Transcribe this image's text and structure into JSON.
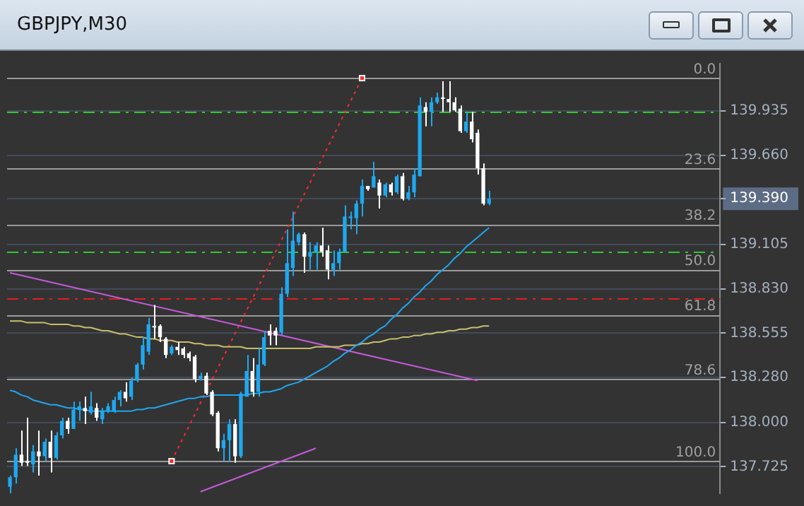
{
  "chart_data": {
    "type": "candlestick",
    "title": "GBPJPY,M30",
    "tick_labels": "y",
    "grid": "y",
    "categories": [
      null,
      null,
      null,
      null,
      null,
      null,
      null,
      null,
      null,
      null,
      null,
      null,
      null,
      null,
      null,
      null,
      null,
      null,
      null,
      null,
      null,
      null,
      null,
      null,
      null,
      null,
      null,
      null,
      null,
      null,
      null,
      null,
      null,
      null,
      null,
      null,
      null,
      null,
      null,
      null,
      null,
      null,
      null,
      null,
      null,
      null,
      null,
      null,
      null,
      null,
      null,
      null,
      null,
      null,
      null,
      null,
      null,
      null,
      null,
      null,
      null,
      null,
      null,
      null,
      null,
      null,
      null,
      null,
      null,
      null,
      null,
      null,
      null,
      null,
      null,
      null,
      null,
      null,
      null,
      null,
      null,
      null,
      null,
      null
    ],
    "ohlc": [
      [
        137.6,
        137.67,
        137.56,
        137.66
      ],
      [
        137.66,
        137.84,
        137.62,
        137.8
      ],
      [
        137.8,
        137.95,
        137.73,
        137.75
      ],
      [
        137.76,
        138.03,
        137.73,
        137.75
      ],
      [
        137.74,
        137.86,
        137.69,
        137.82
      ],
      [
        137.82,
        137.95,
        137.67,
        137.79
      ],
      [
        137.79,
        137.9,
        137.76,
        137.88
      ],
      [
        137.88,
        137.95,
        137.69,
        137.78
      ],
      [
        137.78,
        137.94,
        137.77,
        137.92
      ],
      [
        137.92,
        138.03,
        137.9,
        138.01
      ],
      [
        138.01,
        138.03,
        137.93,
        137.96
      ],
      [
        137.96,
        138.13,
        137.96,
        138.08
      ],
      [
        138.08,
        138.13,
        138.01,
        138.1
      ],
      [
        138.09,
        138.16,
        137.99,
        138.07
      ],
      [
        138.06,
        138.19,
        138.05,
        138.1
      ],
      [
        138.09,
        138.12,
        138.01,
        138.03
      ],
      [
        138.02,
        138.09,
        137.99,
        138.07
      ],
      [
        138.07,
        138.12,
        138.06,
        138.1
      ],
      [
        138.07,
        138.16,
        138.06,
        138.14
      ],
      [
        138.14,
        138.2,
        138.1,
        138.19
      ],
      [
        138.19,
        138.25,
        138.13,
        138.15
      ],
      [
        138.16,
        138.28,
        138.14,
        138.26
      ],
      [
        138.26,
        138.37,
        138.25,
        138.36
      ],
      [
        138.36,
        138.53,
        138.33,
        138.48
      ],
      [
        138.44,
        138.65,
        138.42,
        138.61
      ],
      [
        138.6,
        138.73,
        138.52,
        138.59
      ],
      [
        138.6,
        138.61,
        138.5,
        138.53
      ],
      [
        138.52,
        138.53,
        138.4,
        138.42
      ],
      [
        138.43,
        138.48,
        138.42,
        138.47
      ],
      [
        138.47,
        138.5,
        138.42,
        138.45
      ],
      [
        138.46,
        138.47,
        138.4,
        138.42
      ],
      [
        138.43,
        138.44,
        138.38,
        138.4
      ],
      [
        138.41,
        138.42,
        138.25,
        138.27
      ],
      [
        138.27,
        138.31,
        138.26,
        138.29
      ],
      [
        138.29,
        138.31,
        138.17,
        138.18
      ],
      [
        138.19,
        138.2,
        138.04,
        138.05
      ],
      [
        138.06,
        138.07,
        137.82,
        137.84
      ],
      [
        137.84,
        137.93,
        137.76,
        137.89
      ],
      [
        137.89,
        138.02,
        137.76,
        137.99
      ],
      [
        137.99,
        138.02,
        137.75,
        137.79
      ],
      [
        137.79,
        138.19,
        137.78,
        138.18
      ],
      [
        138.16,
        138.42,
        138.16,
        138.32
      ],
      [
        138.32,
        138.4,
        138.16,
        138.19
      ],
      [
        138.19,
        138.46,
        138.16,
        138.36
      ],
      [
        138.36,
        138.57,
        138.35,
        138.53
      ],
      [
        138.57,
        138.61,
        138.48,
        138.54
      ],
      [
        138.57,
        138.59,
        138.48,
        138.54
      ],
      [
        138.56,
        138.84,
        138.54,
        138.8
      ],
      [
        138.8,
        139.2,
        138.78,
        138.99
      ],
      [
        138.96,
        139.31,
        138.91,
        139.13
      ],
      [
        139.12,
        139.18,
        139.1,
        139.17
      ],
      [
        139.17,
        139.18,
        138.93,
        139.03
      ],
      [
        139.03,
        139.12,
        138.95,
        139.06
      ],
      [
        139.06,
        139.12,
        138.95,
        139.1
      ],
      [
        139.1,
        139.21,
        139.03,
        139.06
      ],
      [
        139.07,
        139.1,
        138.89,
        138.95
      ],
      [
        138.95,
        139.07,
        138.91,
        138.99
      ],
      [
        138.99,
        139.08,
        138.95,
        139.06
      ],
      [
        139.06,
        139.35,
        139.06,
        139.28
      ],
      [
        139.27,
        139.31,
        139.2,
        139.28
      ],
      [
        139.27,
        139.38,
        139.17,
        139.36
      ],
      [
        139.36,
        139.51,
        139.28,
        139.47
      ],
      [
        139.47,
        139.47,
        139.44,
        139.45
      ],
      [
        139.46,
        139.62,
        139.46,
        139.53
      ],
      [
        139.49,
        139.51,
        139.33,
        139.41
      ],
      [
        139.41,
        139.49,
        139.4,
        139.48
      ],
      [
        139.48,
        139.49,
        139.41,
        139.43
      ],
      [
        139.43,
        139.54,
        139.42,
        139.53
      ],
      [
        139.53,
        139.55,
        139.38,
        139.39
      ],
      [
        139.39,
        139.47,
        139.38,
        139.43
      ],
      [
        139.43,
        139.58,
        139.4,
        139.54
      ],
      [
        139.53,
        140.02,
        139.53,
        139.97
      ],
      [
        139.96,
        139.99,
        139.84,
        139.93
      ],
      [
        139.93,
        140.02,
        139.84,
        139.99
      ],
      [
        139.99,
        140.05,
        139.98,
        140.02
      ],
      [
        140.02,
        140.12,
        139.93,
        140.01
      ],
      [
        140.01,
        140.12,
        139.93,
        139.99
      ],
      [
        139.99,
        140.02,
        139.93,
        139.94
      ],
      [
        139.95,
        139.97,
        139.8,
        139.81
      ],
      [
        139.81,
        139.93,
        139.8,
        139.87
      ],
      [
        139.87,
        139.93,
        139.74,
        139.76
      ],
      [
        139.8,
        139.82,
        139.54,
        139.58
      ],
      [
        139.58,
        139.61,
        139.35,
        139.36
      ],
      [
        139.36,
        139.44,
        139.35,
        139.39
      ]
    ],
    "colors": [
      "#1ea8f0",
      "#1ea8f0",
      "#ffffff",
      "#ffffff",
      "#1ea8f0",
      "#ffffff",
      "#1ea8f0",
      "#ffffff",
      "#1ea8f0",
      "#1ea8f0",
      "#ffffff",
      "#1ea8f0",
      "#1ea8f0",
      "#ffffff",
      "#1ea8f0",
      "#ffffff",
      "#1ea8f0",
      "#1ea8f0",
      "#1ea8f0",
      "#1ea8f0",
      "#ffffff",
      "#1ea8f0",
      "#1ea8f0",
      "#1ea8f0",
      "#1ea8f0",
      "#ffffff",
      "#ffffff",
      "#ffffff",
      "#1ea8f0",
      "#ffffff",
      "#ffffff",
      "#ffffff",
      "#ffffff",
      "#1ea8f0",
      "#ffffff",
      "#ffffff",
      "#ffffff",
      "#1ea8f0",
      "#1ea8f0",
      "#ffffff",
      "#1ea8f0",
      "#1ea8f0",
      "#ffffff",
      "#1ea8f0",
      "#1ea8f0",
      "#ffffff",
      "#ffffff",
      "#1ea8f0",
      "#1ea8f0",
      "#1ea8f0",
      "#1ea8f0",
      "#ffffff",
      "#1ea8f0",
      "#1ea8f0",
      "#ffffff",
      "#ffffff",
      "#1ea8f0",
      "#1ea8f0",
      "#1ea8f0",
      "#1ea8f0",
      "#1ea8f0",
      "#1ea8f0",
      "#ffffff",
      "#1ea8f0",
      "#ffffff",
      "#1ea8f0",
      "#ffffff",
      "#1ea8f0",
      "#ffffff",
      "#1ea8f0",
      "#1ea8f0",
      "#1ea8f0",
      "#ffffff",
      "#1ea8f0",
      "#1ea8f0",
      "#ffffff",
      "#ffffff",
      "#ffffff",
      "#ffffff",
      "#1ea8f0",
      "#ffffff",
      "#ffffff",
      "#ffffff",
      "#1ea8f0"
    ],
    "ylim": [
      137.56,
      140.23
    ],
    "yticks": [
      {
        "value": 137.725,
        "label": "137.725"
      },
      {
        "value": 138.0,
        "label": "138.000"
      },
      {
        "value": 138.28,
        "label": "138.280"
      },
      {
        "value": 138.555,
        "label": "138.555"
      },
      {
        "value": 138.83,
        "label": "138.830"
      },
      {
        "value": 139.105,
        "label": "139.105"
      },
      {
        "value": 139.39,
        "label": "139.390"
      },
      {
        "value": 139.66,
        "label": "139.660"
      },
      {
        "value": 139.935,
        "label": "139.935"
      }
    ],
    "series": [
      {
        "type": "line",
        "color": "#1ea8f0",
        "values": [
          138.2,
          138.19,
          138.17,
          138.16,
          138.14,
          138.13,
          138.12,
          138.11,
          138.11,
          138.1,
          138.09,
          138.09,
          138.08,
          138.08,
          138.07,
          138.07,
          138.07,
          138.07,
          138.07,
          138.07,
          138.07,
          138.07,
          138.08,
          138.08,
          138.09,
          138.09,
          138.1,
          138.11,
          138.12,
          138.13,
          138.14,
          138.15,
          138.15,
          138.16,
          138.16,
          138.17,
          138.17,
          138.17,
          138.17,
          138.17,
          138.17,
          138.17,
          138.18,
          138.18,
          138.19,
          138.19,
          138.2,
          138.21,
          138.23,
          138.24,
          138.25,
          138.27,
          138.29,
          138.31,
          138.33,
          138.35,
          138.38,
          138.4,
          138.43,
          138.45,
          138.48,
          138.5,
          138.53,
          138.55,
          138.58,
          138.6,
          138.64,
          138.67,
          138.71,
          138.74,
          138.78,
          138.81,
          138.85,
          138.88,
          138.92,
          138.95,
          138.98,
          139.02,
          139.05,
          139.09,
          139.12,
          139.15,
          139.18,
          139.21
        ]
      },
      {
        "type": "line",
        "color": "#c8be6e",
        "values": [
          138.63,
          138.63,
          138.63,
          138.62,
          138.62,
          138.62,
          138.62,
          138.61,
          138.61,
          138.61,
          138.61,
          138.6,
          138.6,
          138.59,
          138.59,
          138.58,
          138.57,
          138.57,
          138.56,
          138.55,
          138.55,
          138.54,
          138.53,
          138.53,
          138.52,
          138.52,
          138.51,
          138.51,
          138.51,
          138.5,
          138.5,
          138.5,
          138.49,
          138.49,
          138.48,
          138.48,
          138.48,
          138.47,
          138.47,
          138.47,
          138.47,
          138.46,
          138.46,
          138.46,
          138.46,
          138.46,
          138.46,
          138.46,
          138.46,
          138.46,
          138.46,
          138.46,
          138.46,
          138.47,
          138.47,
          138.47,
          138.47,
          138.47,
          138.48,
          138.48,
          138.48,
          138.49,
          138.49,
          138.5,
          138.5,
          138.51,
          138.52,
          138.52,
          138.53,
          138.53,
          138.54,
          138.54,
          138.55,
          138.55,
          138.56,
          138.56,
          138.57,
          138.57,
          138.58,
          138.58,
          138.59,
          138.59,
          138.6,
          138.6
        ]
      },
      {
        "type": "line",
        "color": "#c45ad8",
        "values": [
          138.93,
          null,
          null,
          null,
          null,
          null,
          null,
          null,
          null,
          null,
          null,
          null,
          null,
          null,
          null,
          null,
          null,
          null,
          null,
          null,
          null,
          null,
          null,
          null,
          null,
          null,
          null,
          null,
          null,
          null,
          null,
          null,
          null,
          null,
          null,
          null,
          null,
          null,
          null,
          null,
          null,
          null,
          null,
          null,
          null,
          null,
          null,
          null,
          null,
          null,
          null,
          null,
          null,
          null,
          null,
          null,
          null,
          null,
          null,
          null,
          null,
          null,
          null,
          null,
          null,
          null,
          null,
          null,
          null,
          null,
          null,
          null,
          null,
          null,
          null,
          null,
          null,
          null,
          null,
          null,
          null,
          138.26,
          null,
          null
        ]
      },
      {
        "type": "line",
        "color": "#c45ad8",
        "values": [
          null,
          null,
          null,
          null,
          null,
          null,
          null,
          null,
          null,
          null,
          null,
          null,
          null,
          null,
          null,
          null,
          null,
          null,
          null,
          null,
          null,
          null,
          null,
          null,
          null,
          null,
          null,
          null,
          null,
          null,
          null,
          null,
          null,
          137.57,
          null,
          null,
          null,
          null,
          null,
          null,
          null,
          null,
          null,
          null,
          null,
          null,
          null,
          null,
          null,
          null,
          null,
          null,
          null,
          137.84,
          null,
          null,
          null,
          null,
          null,
          null,
          null,
          null,
          null,
          null,
          null,
          null,
          null,
          null,
          null,
          null,
          null,
          null,
          null,
          null,
          null,
          null,
          null,
          null,
          null,
          null,
          null,
          null,
          null,
          null
        ]
      },
      {
        "type": "line",
        "color": "#ff2a2a",
        "line_style": "dotted",
        "marker": "square",
        "values": [
          null,
          null,
          null,
          null,
          null,
          null,
          null,
          null,
          null,
          null,
          null,
          null,
          null,
          null,
          null,
          null,
          null,
          null,
          null,
          null,
          null,
          null,
          null,
          null,
          null,
          null,
          null,
          null,
          137.76,
          null,
          null,
          null,
          null,
          null,
          null,
          null,
          null,
          null,
          null,
          null,
          null,
          null,
          null,
          null,
          null,
          null,
          null,
          null,
          null,
          null,
          null,
          null,
          null,
          null,
          null,
          null,
          null,
          null,
          null,
          null,
          null,
          140.14,
          null,
          null,
          null,
          null,
          null,
          null,
          null,
          null,
          null,
          null,
          null,
          null,
          null,
          null,
          null,
          null,
          null,
          null,
          null,
          null,
          null,
          null
        ]
      }
    ],
    "ref_lines": [
      {
        "axis": "y",
        "value": 140.14,
        "color": "#9a9a9a"
      },
      {
        "axis": "y",
        "value": 139.578,
        "color": "#9a9a9a"
      },
      {
        "axis": "y",
        "value": 139.231,
        "color": "#9a9a9a"
      },
      {
        "axis": "y",
        "value": 138.95,
        "color": "#9a9a9a"
      },
      {
        "axis": "y",
        "value": 138.669,
        "color": "#9a9a9a"
      },
      {
        "axis": "y",
        "value": 138.269,
        "color": "#9a9a9a"
      },
      {
        "axis": "y",
        "value": 137.76,
        "color": "#9a9a9a"
      },
      {
        "axis": "y",
        "value": 139.935,
        "color": "#32c832",
        "line_style": "dashed"
      },
      {
        "axis": "y",
        "value": 139.06,
        "color": "#32c832",
        "line_style": "dashed"
      },
      {
        "axis": "y",
        "value": 138.77,
        "color": "#e02020",
        "line_style": "dashed"
      }
    ],
    "annotations": [
      {
        "text": "0.0",
        "y": 140.14
      },
      {
        "text": "23.6",
        "y": 139.578
      },
      {
        "text": "38.2",
        "y": 139.231
      },
      {
        "text": "50.0",
        "y": 138.95
      },
      {
        "text": "61.8",
        "y": 138.669
      },
      {
        "text": "78.6",
        "y": 138.269
      },
      {
        "text": "100.0",
        "y": 137.76
      }
    ]
  }
}
